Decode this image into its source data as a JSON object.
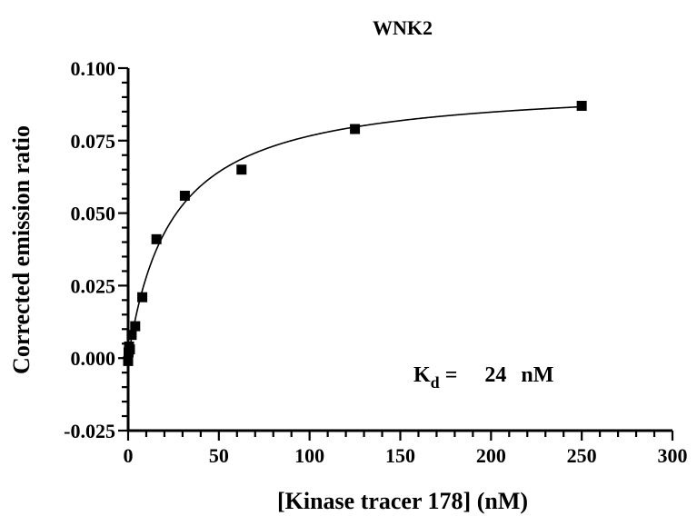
{
  "chart_data": {
    "type": "scatter",
    "title": "WNK2",
    "xlabel": "[Kinase tracer 178] (nM)",
    "ylabel": "Corrected emission ratio",
    "xlim": [
      0,
      300
    ],
    "ylim": [
      -0.025,
      0.1
    ],
    "x_ticks": [
      0,
      50,
      100,
      150,
      200,
      250,
      300
    ],
    "y_ticks": [
      -0.025,
      0.0,
      0.025,
      0.05,
      0.075,
      0.1
    ],
    "x_tick_labels": [
      "0",
      "50",
      "100",
      "150",
      "200",
      "250",
      "300"
    ],
    "y_tick_labels": [
      "-0.025",
      "0.000",
      "0.025",
      "0.050",
      "0.075",
      "0.100"
    ],
    "grid": false,
    "series": [
      {
        "marker": "square",
        "color": "#000000",
        "x": [
          0,
          0.24,
          0.49,
          0.98,
          1.95,
          3.9,
          7.8,
          15.6,
          31.25,
          62.5,
          125,
          250
        ],
        "y": [
          -0.001,
          0.002,
          0.004,
          0.003,
          0.008,
          0.011,
          0.021,
          0.041,
          0.056,
          0.065,
          0.079,
          0.087
        ]
      }
    ],
    "fit": {
      "model": "one-site binding",
      "bmax": 0.095,
      "kd": 24
    },
    "annotation": {
      "k_symbol": "K",
      "k_subscript": "d",
      "equals": "=",
      "value": "24",
      "unit": "nM"
    }
  }
}
